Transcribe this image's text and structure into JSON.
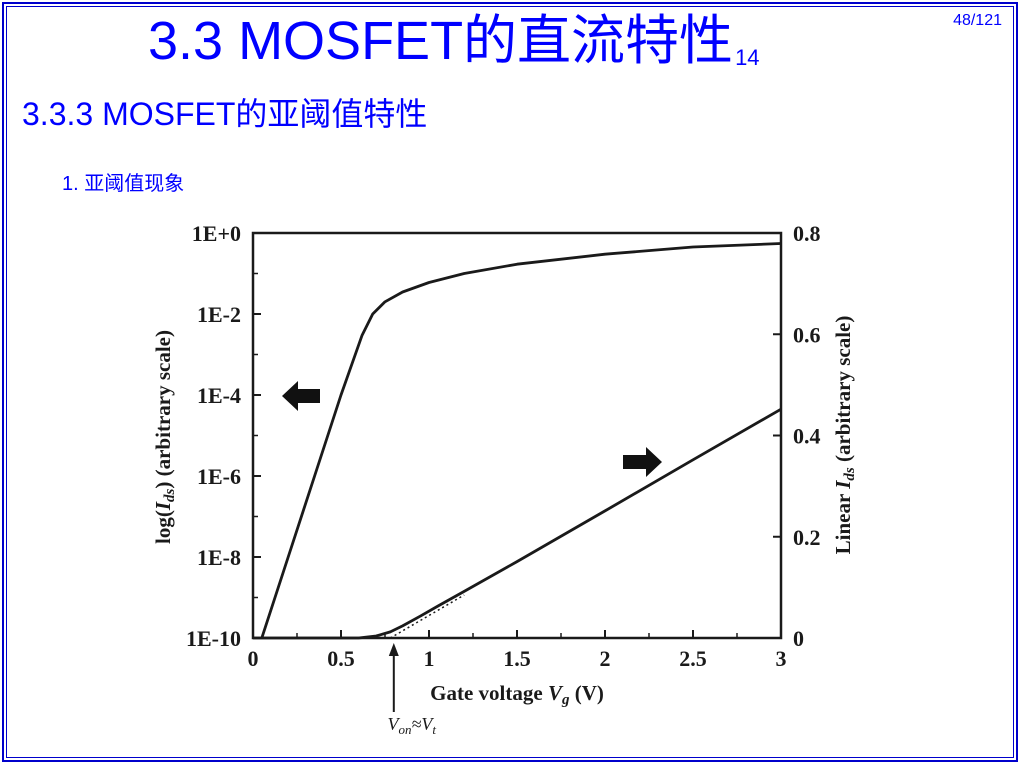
{
  "slide": {
    "title": "3.3  MOSFET的直流特性",
    "title_suffix": "14",
    "page_number": "48/121",
    "section_heading": "3.3.3  MOSFET的亚阈值特性",
    "subsection_heading": "1. 亚阈值现象",
    "accent_color": "#0000ff"
  },
  "chart_data": {
    "type": "line",
    "xlabel": "Gate voltage",
    "xlabel_symbol": "V",
    "xlabel_symbol_sub": "g",
    "xlabel_unit": "(V)",
    "x_ticks": [
      "0",
      "0.5",
      "1",
      "1.5",
      "2",
      "2.5",
      "3"
    ],
    "xlim": [
      0,
      3
    ],
    "y_left": {
      "label_pre": "log(",
      "label_symbol": "I",
      "label_sub": "ds",
      "label_post": ")  (arbitrary scale)",
      "scale": "log",
      "ticks": [
        "1E+0",
        "1E-2",
        "1E-4",
        "1E-6",
        "1E-8",
        "1E-10"
      ],
      "ylim": [
        1e-10,
        1
      ]
    },
    "y_right": {
      "label_pre": "Linear ",
      "label_symbol": "I",
      "label_sub": "ds",
      "label_post": "  (arbitrary scale)",
      "scale": "linear",
      "ticks": [
        "0.8",
        "0.6",
        "0.4",
        "0.2",
        "0"
      ],
      "ylim": [
        0,
        0.8
      ]
    },
    "series": [
      {
        "axis": "left",
        "x": [
          0.05,
          0.2,
          0.35,
          0.5,
          0.62,
          0.68,
          0.75,
          0.85,
          1.0,
          1.2,
          1.5,
          2.0,
          2.5,
          3.0
        ],
        "y": [
          1e-10,
          1e-08,
          1e-06,
          0.0001,
          0.003,
          0.01,
          0.02,
          0.035,
          0.06,
          0.1,
          0.17,
          0.3,
          0.45,
          0.55
        ]
      },
      {
        "axis": "right",
        "x": [
          0,
          0.6,
          0.7,
          0.78,
          0.85,
          0.95,
          1.05,
          1.2,
          1.5,
          2.0,
          2.5,
          3.0
        ],
        "y": [
          0,
          0,
          0.004,
          0.012,
          0.024,
          0.043,
          0.063,
          0.092,
          0.151,
          0.251,
          0.352,
          0.452
        ]
      },
      {
        "axis": "right",
        "style": "dotted",
        "x": [
          0.78,
          1.2
        ],
        "y": [
          0,
          0.085
        ]
      }
    ],
    "arrows": [
      {
        "direction": "left",
        "points_to": "left-axis"
      },
      {
        "direction": "right",
        "points_to": "right-axis"
      }
    ],
    "annotation": {
      "text_pre": "V",
      "sub1": "on",
      "mid": "≈V",
      "sub2": "t",
      "x": 0.8
    }
  }
}
